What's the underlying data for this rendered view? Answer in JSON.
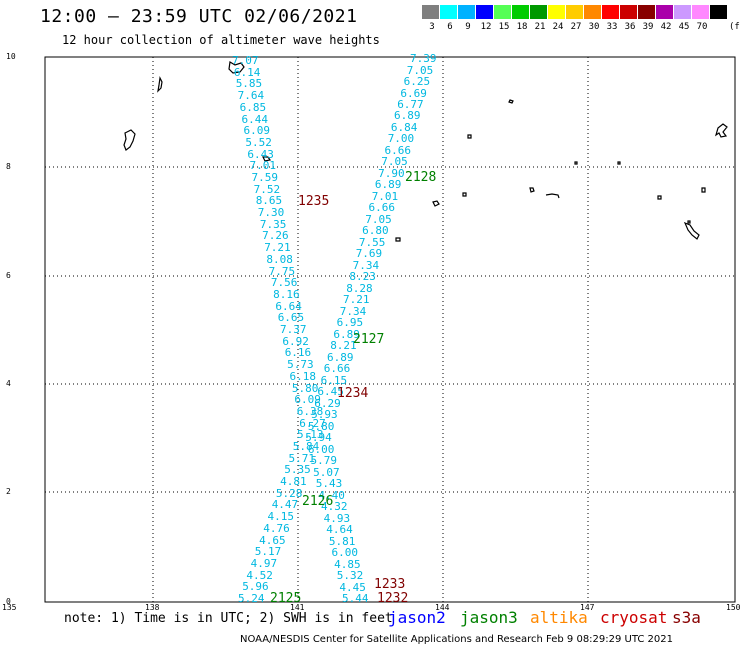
{
  "header": {
    "title": "12:00 — 23:59 UTC 02/06/2021",
    "subtitle": "12 hour collection of altimeter wave heights"
  },
  "scale": {
    "unit": "(ft)",
    "bins": [
      {
        "label": "3",
        "color": "#7f7f7f"
      },
      {
        "label": "6",
        "color": "#00ffff"
      },
      {
        "label": "9",
        "color": "#00b2ff"
      },
      {
        "label": "12",
        "color": "#0000ff"
      },
      {
        "label": "15",
        "color": "#55ff55"
      },
      {
        "label": "18",
        "color": "#00cc00"
      },
      {
        "label": "21",
        "color": "#009900"
      },
      {
        "label": "24",
        "color": "#ffff00"
      },
      {
        "label": "27",
        "color": "#ffcc00"
      },
      {
        "label": "30",
        "color": "#ff8800"
      },
      {
        "label": "33",
        "color": "#ff0000"
      },
      {
        "label": "36",
        "color": "#cc0000"
      },
      {
        "label": "39",
        "color": "#880000"
      },
      {
        "label": "42",
        "color": "#aa00aa"
      },
      {
        "label": "45",
        "color": "#cc99ff"
      },
      {
        "label": "70",
        "color": "#ff88ff"
      },
      {
        "label": "",
        "color": "#000000"
      }
    ]
  },
  "axes": {
    "y_ticks": [
      "10",
      "8",
      "6",
      "4",
      "2",
      "0"
    ],
    "x_ticks": [
      "135",
      "138",
      "141",
      "144",
      "147",
      "150"
    ],
    "lat_range": [
      0,
      10
    ],
    "lon_range": [
      135,
      150
    ]
  },
  "tracks": [
    {
      "name": "track-a",
      "color": "#00b8e0",
      "values": [
        "7.07",
        "6.14",
        "5.85",
        "7.64",
        "6.85",
        "6.44",
        "6.09",
        "5.52",
        "6.43",
        "7.01",
        "7.59",
        "7.52",
        "8.65",
        "7.30",
        "7.35",
        "7.26",
        "7.21",
        "8.08",
        "7.75",
        "7.56",
        "8.16",
        "6.64",
        "6.65",
        "7.37",
        "6.92",
        "6.16",
        "5.73",
        "6.18",
        "5.80",
        "6.09",
        "6.38",
        "6.27",
        "5.13",
        "5.84",
        "5.71",
        "5.35",
        "4.81",
        "5.28",
        "4.47",
        "4.15",
        "4.76",
        "4.65",
        "5.17",
        "4.97",
        "4.52",
        "5.96",
        "5.24"
      ]
    },
    {
      "name": "track-b",
      "color": "#00b8e0",
      "values": [
        "7.39",
        "7.05",
        "6.25",
        "6.69",
        "6.77",
        "6.89",
        "6.84",
        "7.00",
        "6.66",
        "7.05",
        "7.90",
        "6.89",
        "7.01",
        "6.66",
        "7.05",
        "6.80",
        "7.55",
        "7.69",
        "7.34",
        "8.23",
        "8.28",
        "7.21",
        "7.34",
        "6.95",
        "6.89",
        "8.21",
        "6.89",
        "6.66",
        "6.15",
        "6.45",
        "6.29",
        "5.93",
        "5.80",
        "5.94",
        "6.00",
        "5.79",
        "5.07",
        "5.43",
        "4.40",
        "4.32",
        "4.93",
        "4.64",
        "5.81",
        "6.00",
        "4.85",
        "5.32",
        "4.45",
        "5.44"
      ]
    }
  ],
  "time_labels": [
    {
      "text": "1235",
      "color": "#800000"
    },
    {
      "text": "2128",
      "color": "#008000"
    },
    {
      "text": "2127",
      "color": "#008000"
    },
    {
      "text": "1234",
      "color": "#800000"
    },
    {
      "text": "2126",
      "color": "#008000"
    },
    {
      "text": "1233",
      "color": "#800000"
    },
    {
      "text": "1232",
      "color": "#800000"
    },
    {
      "text": "2125",
      "color": "#008000"
    }
  ],
  "footer": {
    "note": "note: 1) Time is in UTC; 2) SWH is in feet",
    "satellites": [
      {
        "name": "jason2",
        "color": "#0000ff"
      },
      {
        "name": "jason3",
        "color": "#008000"
      },
      {
        "name": "altika",
        "color": "#ff8800"
      },
      {
        "name": "cryosat",
        "color": "#cc0000"
      },
      {
        "name": "s3a",
        "color": "#880000"
      }
    ],
    "credit": "NOAA/NESDIS Center for Satellite Applications and Research    Feb  9 08:29:29 UTC 2021"
  }
}
